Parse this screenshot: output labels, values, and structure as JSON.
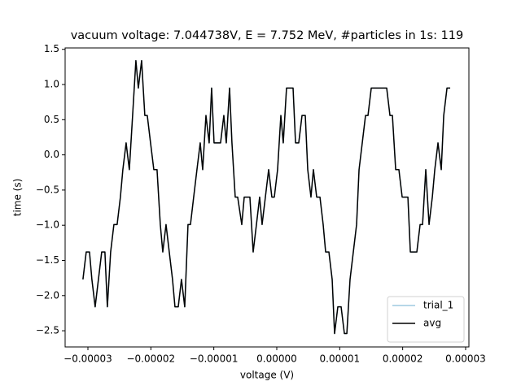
{
  "chart_data": {
    "type": "line",
    "title": "vacuum voltage: 7.044738V, E = 7.752 MeV, #particles in 1s: 119",
    "xlabel": "voltage (V)",
    "ylabel": "time (s)",
    "x": [
      -3.079e-05,
      -3.027e-05,
      -2.975e-05,
      -2.937e-05,
      -2.885e-05,
      -2.833e-05,
      -2.781e-05,
      -2.73e-05,
      -2.691e-05,
      -2.639e-05,
      -2.587e-05,
      -2.536e-05,
      -2.484e-05,
      -2.445e-05,
      -2.393e-05,
      -2.342e-05,
      -2.29e-05,
      -2.238e-05,
      -2.199e-05,
      -2.147e-05,
      -2.096e-05,
      -2.057e-05,
      -2.005e-05,
      -1.953e-05,
      -1.902e-05,
      -1.85e-05,
      -1.811e-05,
      -1.759e-05,
      -1.708e-05,
      -1.656e-05,
      -1.617e-05,
      -1.565e-05,
      -1.514e-05,
      -1.462e-05,
      -1.41e-05,
      -1.371e-05,
      -1.32e-05,
      -1.268e-05,
      -1.216e-05,
      -1.177e-05,
      -1.125e-05,
      -1.074e-05,
      -1.035e-05,
      -9.96e-06,
      -9.44e-06,
      -8.93e-06,
      -8.41e-06,
      -8.02e-06,
      -7.5e-06,
      -7.12e-06,
      -6.6e-06,
      -6.21e-06,
      -5.56e-06,
      -5.17e-06,
      -4.66e-06,
      -4.27e-06,
      -3.75e-06,
      -3.23e-06,
      -2.72e-06,
      -2.33e-06,
      -1.81e-06,
      -1.29e-06,
      -7.8e-07,
      -3.9e-07,
      1.3e-07,
      6.5e-07,
      1.03e-06,
      1.55e-06,
      2.07e-06,
      2.59e-06,
      2.98e-06,
      3.49e-06,
      4.01e-06,
      4.53e-06,
      4.92e-06,
      5.43e-06,
      5.82e-06,
      6.34e-06,
      6.86e-06,
      7.37e-06,
      7.76e-06,
      8.28e-06,
      8.8e-06,
      9.18e-06,
      9.7e-06,
      1.022e-05,
      1.074e-05,
      1.113e-05,
      1.164e-05,
      1.216e-05,
      1.268e-05,
      1.307e-05,
      1.358e-05,
      1.41e-05,
      1.449e-05,
      1.501e-05,
      1.552e-05,
      1.604e-05,
      1.656e-05,
      1.695e-05,
      1.746e-05,
      1.798e-05,
      1.837e-05,
      1.889e-05,
      1.94e-05,
      1.992e-05,
      2.031e-05,
      2.083e-05,
      2.122e-05,
      2.173e-05,
      2.225e-05,
      2.277e-05,
      2.316e-05,
      2.367e-05,
      2.419e-05,
      2.471e-05,
      2.51e-05,
      2.561e-05,
      2.613e-05,
      2.652e-05,
      2.704e-05,
      2.755e-05
    ],
    "series": [
      {
        "name": "trial_1",
        "color": "#9ecae1",
        "values": [
          -1.77,
          -1.38,
          -1.38,
          -1.77,
          -2.16,
          -1.77,
          -1.38,
          -1.38,
          -2.16,
          -1.38,
          -0.99,
          -0.99,
          -0.6,
          -0.21,
          0.17,
          -0.21,
          0.56,
          1.34,
          0.95,
          1.34,
          0.56,
          0.56,
          0.17,
          -0.21,
          -0.21,
          -0.99,
          -1.38,
          -0.99,
          -1.38,
          -1.77,
          -2.16,
          -2.16,
          -1.77,
          -2.16,
          -0.99,
          -0.99,
          -0.6,
          -0.21,
          0.17,
          -0.21,
          0.56,
          0.17,
          0.95,
          0.17,
          0.17,
          0.17,
          0.56,
          0.17,
          0.95,
          0.17,
          -0.6,
          -0.6,
          -0.99,
          -0.6,
          -0.6,
          -0.6,
          -1.38,
          -0.99,
          -0.6,
          -0.99,
          -0.6,
          -0.21,
          -0.6,
          -0.6,
          -0.21,
          0.56,
          0.17,
          0.95,
          0.95,
          0.95,
          0.17,
          0.17,
          0.56,
          0.56,
          -0.21,
          -0.6,
          -0.21,
          -0.6,
          -0.6,
          -0.99,
          -1.38,
          -1.38,
          -1.77,
          -2.54,
          -2.16,
          -2.16,
          -2.54,
          -2.54,
          -1.77,
          -1.38,
          -0.99,
          -0.21,
          0.17,
          0.56,
          0.56,
          0.95,
          0.95,
          0.95,
          0.95,
          0.95,
          0.95,
          0.56,
          0.56,
          -0.21,
          -0.21,
          -0.6,
          -0.6,
          -0.6,
          -1.38,
          -1.38,
          -1.38,
          -0.99,
          -0.99,
          -0.21,
          -0.99,
          -0.6,
          -0.21,
          0.17,
          -0.21,
          0.56,
          0.95,
          0.95
        ]
      },
      {
        "name": "avg",
        "color": "#000000",
        "values": [
          -1.77,
          -1.38,
          -1.38,
          -1.77,
          -2.16,
          -1.77,
          -1.38,
          -1.38,
          -2.16,
          -1.38,
          -0.99,
          -0.99,
          -0.6,
          -0.21,
          0.17,
          -0.21,
          0.56,
          1.34,
          0.95,
          1.34,
          0.56,
          0.56,
          0.17,
          -0.21,
          -0.21,
          -0.99,
          -1.38,
          -0.99,
          -1.38,
          -1.77,
          -2.16,
          -2.16,
          -1.77,
          -2.16,
          -0.99,
          -0.99,
          -0.6,
          -0.21,
          0.17,
          -0.21,
          0.56,
          0.17,
          0.95,
          0.17,
          0.17,
          0.17,
          0.56,
          0.17,
          0.95,
          0.17,
          -0.6,
          -0.6,
          -0.99,
          -0.6,
          -0.6,
          -0.6,
          -1.38,
          -0.99,
          -0.6,
          -0.99,
          -0.6,
          -0.21,
          -0.6,
          -0.6,
          -0.21,
          0.56,
          0.17,
          0.95,
          0.95,
          0.95,
          0.17,
          0.17,
          0.56,
          0.56,
          -0.21,
          -0.6,
          -0.21,
          -0.6,
          -0.6,
          -0.99,
          -1.38,
          -1.38,
          -1.77,
          -2.54,
          -2.16,
          -2.16,
          -2.54,
          -2.54,
          -1.77,
          -1.38,
          -0.99,
          -0.21,
          0.17,
          0.56,
          0.56,
          0.95,
          0.95,
          0.95,
          0.95,
          0.95,
          0.95,
          0.56,
          0.56,
          -0.21,
          -0.21,
          -0.6,
          -0.6,
          -0.6,
          -1.38,
          -1.38,
          -1.38,
          -0.99,
          -0.99,
          -0.21,
          -0.99,
          -0.6,
          -0.21,
          0.17,
          -0.21,
          0.56,
          0.95,
          0.95
        ]
      }
    ],
    "xlim": [
      -3.362e-05,
      3.052e-05
    ],
    "ylim": [
      -2.73,
      1.52
    ],
    "xticks": [
      {
        "value": -3e-05,
        "label": "−0.00003"
      },
      {
        "value": -2e-05,
        "label": "−0.00002"
      },
      {
        "value": -1e-05,
        "label": "−0.00001"
      },
      {
        "value": 0,
        "label": "0.00000"
      },
      {
        "value": 1e-05,
        "label": "0.00001"
      },
      {
        "value": 2e-05,
        "label": "0.00002"
      },
      {
        "value": 3e-05,
        "label": "0.00003"
      }
    ],
    "yticks": [
      {
        "value": -2.5,
        "label": "−2.5"
      },
      {
        "value": -2,
        "label": "−2.0"
      },
      {
        "value": -1.5,
        "label": "−1.5"
      },
      {
        "value": -1,
        "label": "−1.0"
      },
      {
        "value": -0.5,
        "label": "−0.5"
      },
      {
        "value": 0,
        "label": "0.0"
      },
      0.5,
      {
        "value": 1,
        "label": "1.0"
      },
      1.5
    ],
    "legend": "lower right",
    "grid": false
  }
}
